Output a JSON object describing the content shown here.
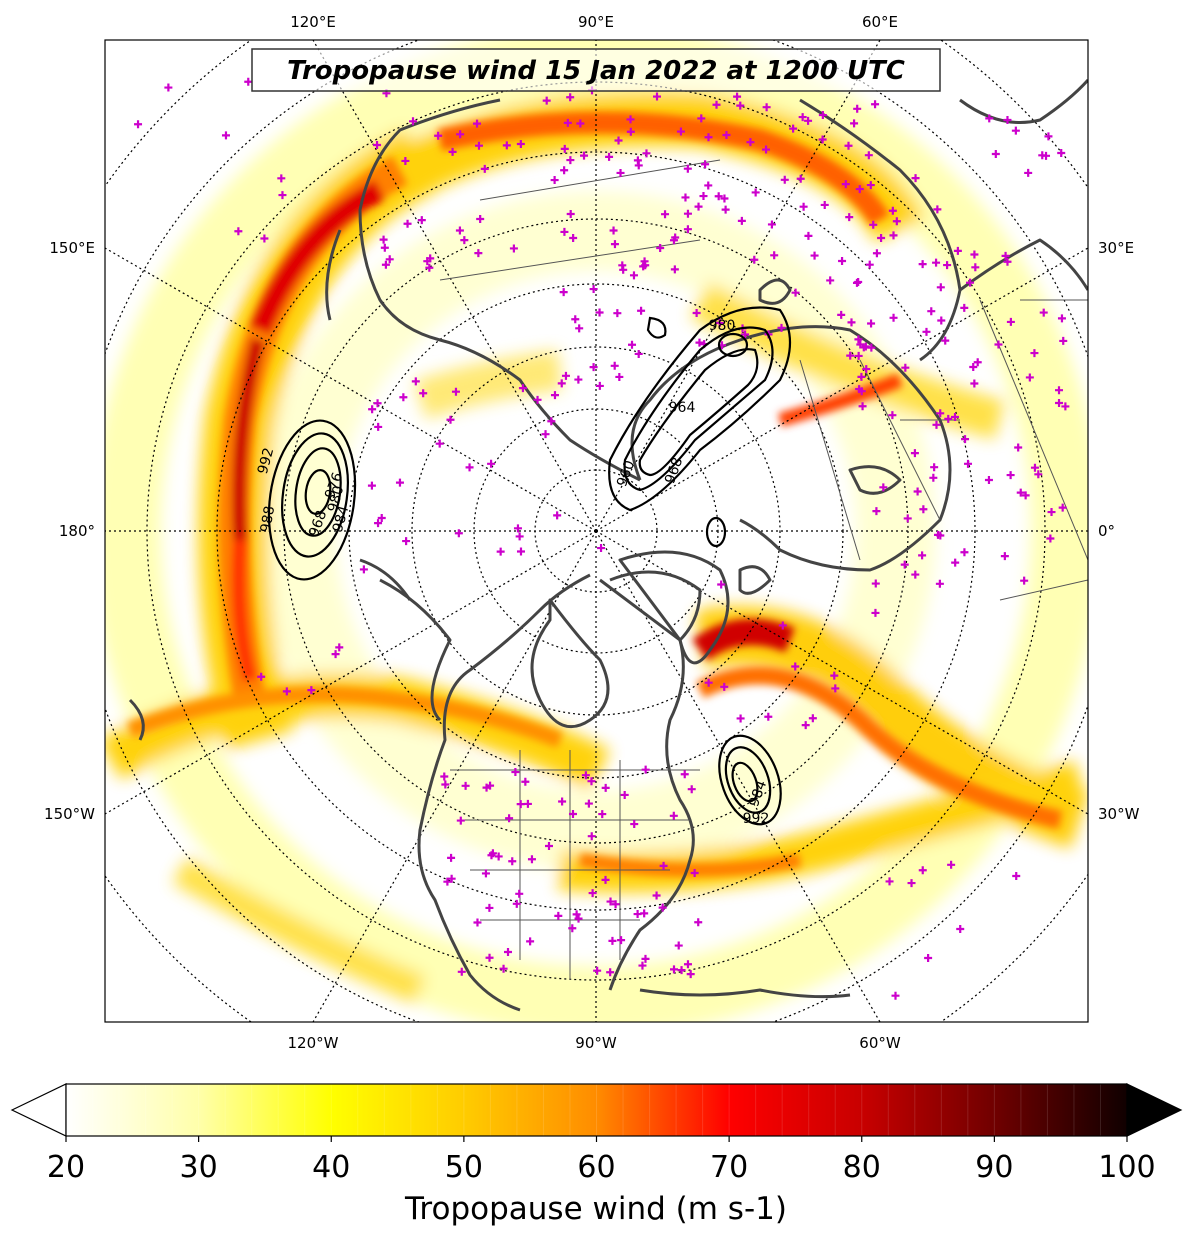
{
  "title": "Tropopause wind 15 Jan 2022 at 1200 UTC",
  "colorbar": {
    "label": "Tropopause wind (m s-1)",
    "ticks": [
      "20",
      "30",
      "40",
      "50",
      "60",
      "70",
      "80",
      "90",
      "100"
    ],
    "min": 20,
    "max": 100,
    "extend": "both",
    "colormap": "hot_r",
    "stops": [
      "#ffffff",
      "#ffff66",
      "#ffff00",
      "#ffd000",
      "#ff9900",
      "#ff5a00",
      "#ff0000",
      "#c80000",
      "#7a0000",
      "#000000"
    ]
  },
  "map": {
    "projection": "north-polar-stereographic",
    "longitude_labels": {
      "top": [
        "120°E",
        "90°E",
        "60°E"
      ],
      "bottom": [
        "120°W",
        "90°W",
        "60°W"
      ],
      "left": [
        "150°E",
        "180°",
        "150°W"
      ],
      "right": [
        "30°E",
        "0°",
        "30°W"
      ]
    },
    "gridlines": "dotted",
    "coastline_color": "#444444",
    "station_marker_color": "#cc00cc",
    "contour_labels": [
      "992",
      "988",
      "976",
      "968",
      "984",
      "980",
      "964",
      "960",
      "968",
      "980",
      "984",
      "992"
    ]
  },
  "chart_data": {
    "type": "heatmap",
    "title": "Tropopause wind 15 Jan 2022 at 1200 UTC",
    "variable": "Tropopause wind",
    "units": "m s-1",
    "range": [
      20,
      100
    ],
    "features": [
      {
        "description": "subtropical/polar jet arc over North Pacific",
        "max_speed": 90
      },
      {
        "description": "jet over Asia",
        "max_speed": 85
      },
      {
        "description": "jet over North Atlantic / Greenland",
        "max_speed": 85
      }
    ],
    "sea_level_pressure_lows": [
      {
        "region": "North Pacific",
        "min_hpa": 968
      },
      {
        "region": "Western Siberia",
        "min_hpa": 960
      },
      {
        "region": "Northwest Atlantic",
        "min_hpa": 980
      }
    ]
  }
}
